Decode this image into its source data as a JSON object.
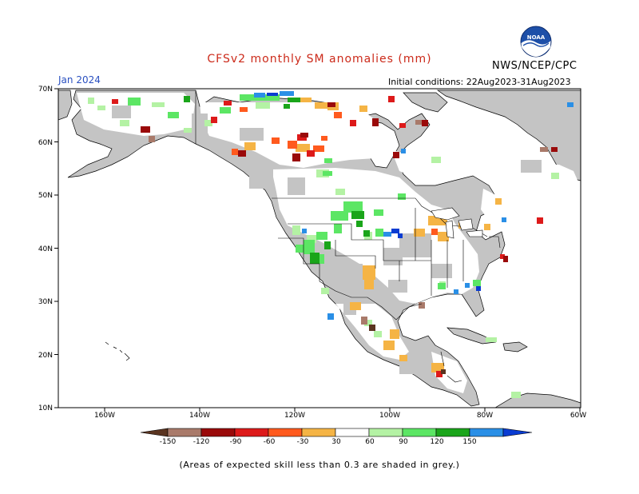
{
  "header": {
    "title": "CFSv2 monthly SM anomalies (mm)",
    "valid_month": "Jan 2024",
    "initial_conditions": "Initial conditions: 22Aug2023-31Aug2023",
    "agency": "NWS/NCEP/CPC",
    "logo_text": "NOAA"
  },
  "colors": {
    "title": "#cc2a1a",
    "month": "#2a50c0",
    "ocean": "#ffffff",
    "low_skill": "#c4c4c4",
    "no_signal_land": "#ffffff"
  },
  "map": {
    "lat_labels": [
      "70N",
      "60N",
      "50N",
      "40N",
      "30N",
      "20N",
      "10N"
    ],
    "lon_labels": [
      "160W",
      "140W",
      "120W",
      "100W",
      "80W",
      "60W"
    ]
  },
  "colorbar": {
    "labels": [
      "-150",
      "-120",
      "-90",
      "-60",
      "-30",
      "30",
      "60",
      "90",
      "120",
      "150"
    ],
    "colors": [
      "#5a3420",
      "#a97a6a",
      "#9a0a0a",
      "#dd1a1a",
      "#ff5a1e",
      "#f5b445",
      "#ffffff",
      "#b4f2a4",
      "#5ce664",
      "#1aa51a",
      "#2a8fe6",
      "#0a3cd2"
    ]
  },
  "footnote": "(Areas of expected skill less than 0.3 are shaded in grey.)"
}
